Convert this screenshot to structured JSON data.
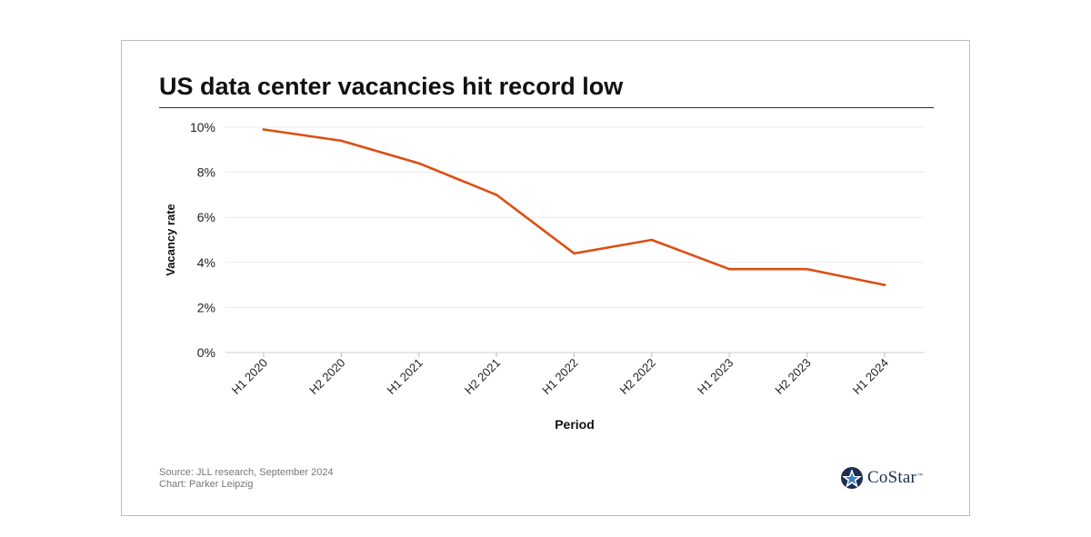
{
  "chart_data": {
    "type": "line",
    "title": "US data center vacancies hit record low",
    "xlabel": "Period",
    "ylabel": "Vacancy rate",
    "categories": [
      "H1 2020",
      "H2 2020",
      "H1 2021",
      "H2 2021",
      "H1 2022",
      "H2 2022",
      "H1 2023",
      "H2 2023",
      "H1 2024"
    ],
    "values": [
      9.9,
      9.4,
      8.4,
      7.0,
      4.4,
      5.0,
      3.7,
      3.7,
      3.0
    ],
    "ylim": [
      0,
      10
    ],
    "yticks": [
      0,
      2,
      4,
      6,
      8,
      10
    ],
    "ytick_suffix": "%",
    "grid": true,
    "line_color": "#dd4e12"
  },
  "footer": {
    "source": "Source: JLL research, September 2024",
    "credit": "Chart: Parker Leipzig"
  },
  "logo": {
    "text": "CoStar",
    "tm": "™",
    "color": "#1d2d52"
  }
}
